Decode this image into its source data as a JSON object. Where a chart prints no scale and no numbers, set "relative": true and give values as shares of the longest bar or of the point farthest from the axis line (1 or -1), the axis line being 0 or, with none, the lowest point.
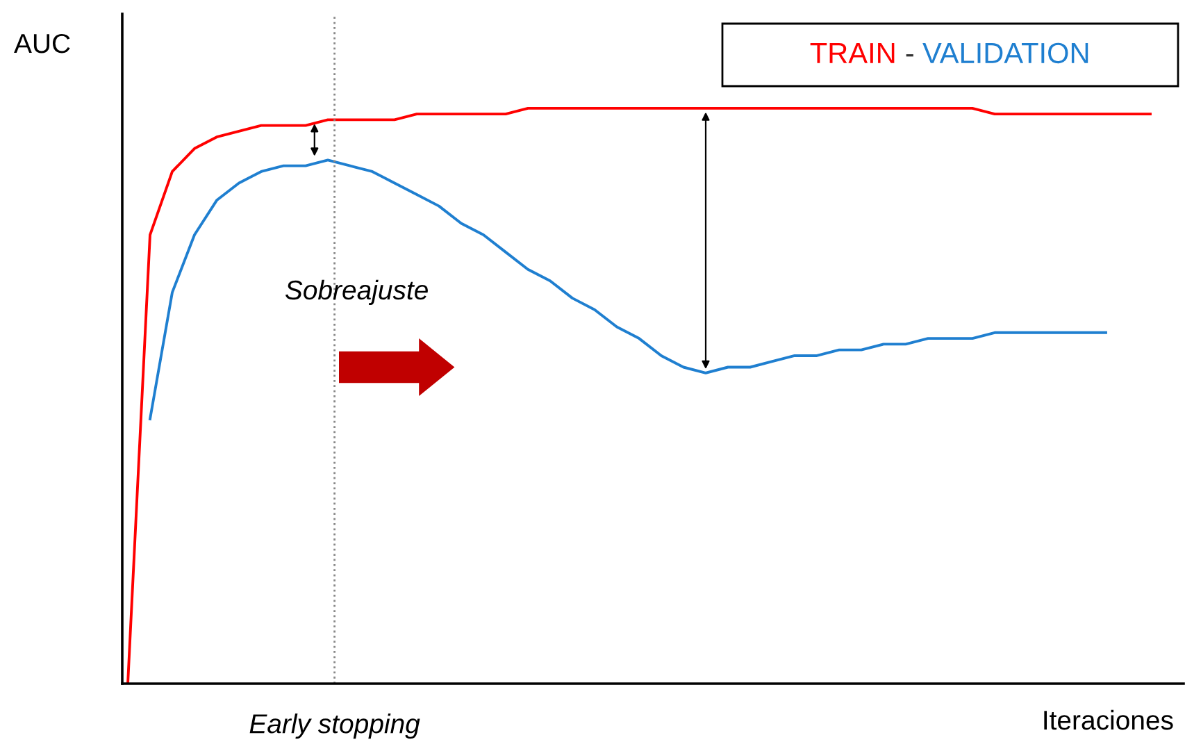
{
  "chart_data": {
    "type": "line",
    "relative": true,
    "ylabel": "AUC",
    "xlabel": "Iteraciones",
    "legend": "top right",
    "legend_title": "-",
    "marker": "none",
    "line_style": "solid",
    "categories": [
      null,
      null,
      null,
      null,
      null,
      null,
      null,
      null,
      null,
      null,
      null,
      null,
      null,
      null,
      null,
      null,
      null,
      null,
      null,
      null,
      null,
      null,
      null,
      null,
      null,
      null,
      null,
      null,
      null,
      null,
      null,
      null,
      null,
      null,
      null,
      null,
      null,
      null,
      null,
      null,
      null,
      null,
      null,
      null,
      null,
      null,
      null
    ],
    "series": [
      {
        "name": "TRAIN",
        "color": "#ff0000",
        "values": [
          0,
          0.78,
          0.89,
          0.93,
          0.95,
          0.96,
          0.97,
          0.97,
          0.97,
          0.98,
          0.98,
          0.98,
          0.98,
          0.99,
          0.99,
          0.99,
          0.99,
          0.99,
          1.0,
          1.0,
          1.0,
          1.0,
          1.0,
          1.0,
          1.0,
          1.0,
          1.0,
          1.0,
          1.0,
          1.0,
          1.0,
          1.0,
          1.0,
          1.0,
          1.0,
          1.0,
          1.0,
          1.0,
          1.0,
          0.99,
          0.99,
          0.99,
          0.99,
          0.99,
          0.99,
          0.99,
          0.99
        ]
      },
      {
        "name": "VALIDATION",
        "color": "#1f7fd0",
        "values": [
          null,
          0.46,
          0.68,
          0.78,
          0.84,
          0.87,
          0.89,
          0.9,
          0.9,
          0.91,
          0.9,
          0.89,
          0.87,
          0.85,
          0.83,
          0.8,
          0.78,
          0.75,
          0.72,
          0.7,
          0.67,
          0.65,
          0.62,
          0.6,
          0.57,
          0.55,
          0.54,
          0.55,
          0.55,
          0.56,
          0.57,
          0.57,
          0.58,
          0.58,
          0.59,
          0.59,
          0.6,
          0.6,
          0.6,
          0.61,
          0.61,
          0.61,
          0.61,
          0.61,
          0.61,
          null,
          null
        ]
      }
    ],
    "annotations": [
      "Sobreajuste",
      "Early stopping"
    ]
  }
}
